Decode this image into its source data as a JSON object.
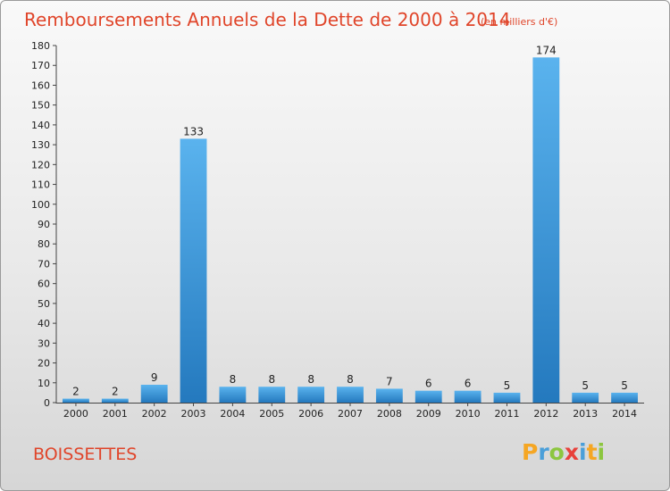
{
  "chart_data": {
    "type": "bar",
    "title": "Remboursements Annuels de la Dette de 2000 à 2014",
    "unit_label": "(en milliers d'€)",
    "categories": [
      "2000",
      "2001",
      "2002",
      "2003",
      "2004",
      "2005",
      "2006",
      "2007",
      "2008",
      "2009",
      "2010",
      "2011",
      "2012",
      "2013",
      "2014"
    ],
    "values": [
      2,
      2,
      9,
      133,
      8,
      8,
      8,
      8,
      7,
      6,
      6,
      5,
      174,
      5,
      5
    ],
    "ylim": [
      0,
      180
    ],
    "yticks": [
      0,
      10,
      20,
      30,
      40,
      50,
      60,
      70,
      80,
      90,
      100,
      110,
      120,
      130,
      140,
      150,
      160,
      170,
      180
    ],
    "grid": false,
    "bar_color": "#3d93d8"
  },
  "location": "BOISSETTES",
  "logo": {
    "letters": [
      "P",
      "r",
      "o",
      "x",
      "i",
      "t",
      "i"
    ],
    "colors": [
      "#f5a623",
      "#4a9fd9",
      "#8cc63f",
      "#e8413b",
      "#4a9fd9",
      "#f5a623",
      "#8cc63f"
    ]
  }
}
